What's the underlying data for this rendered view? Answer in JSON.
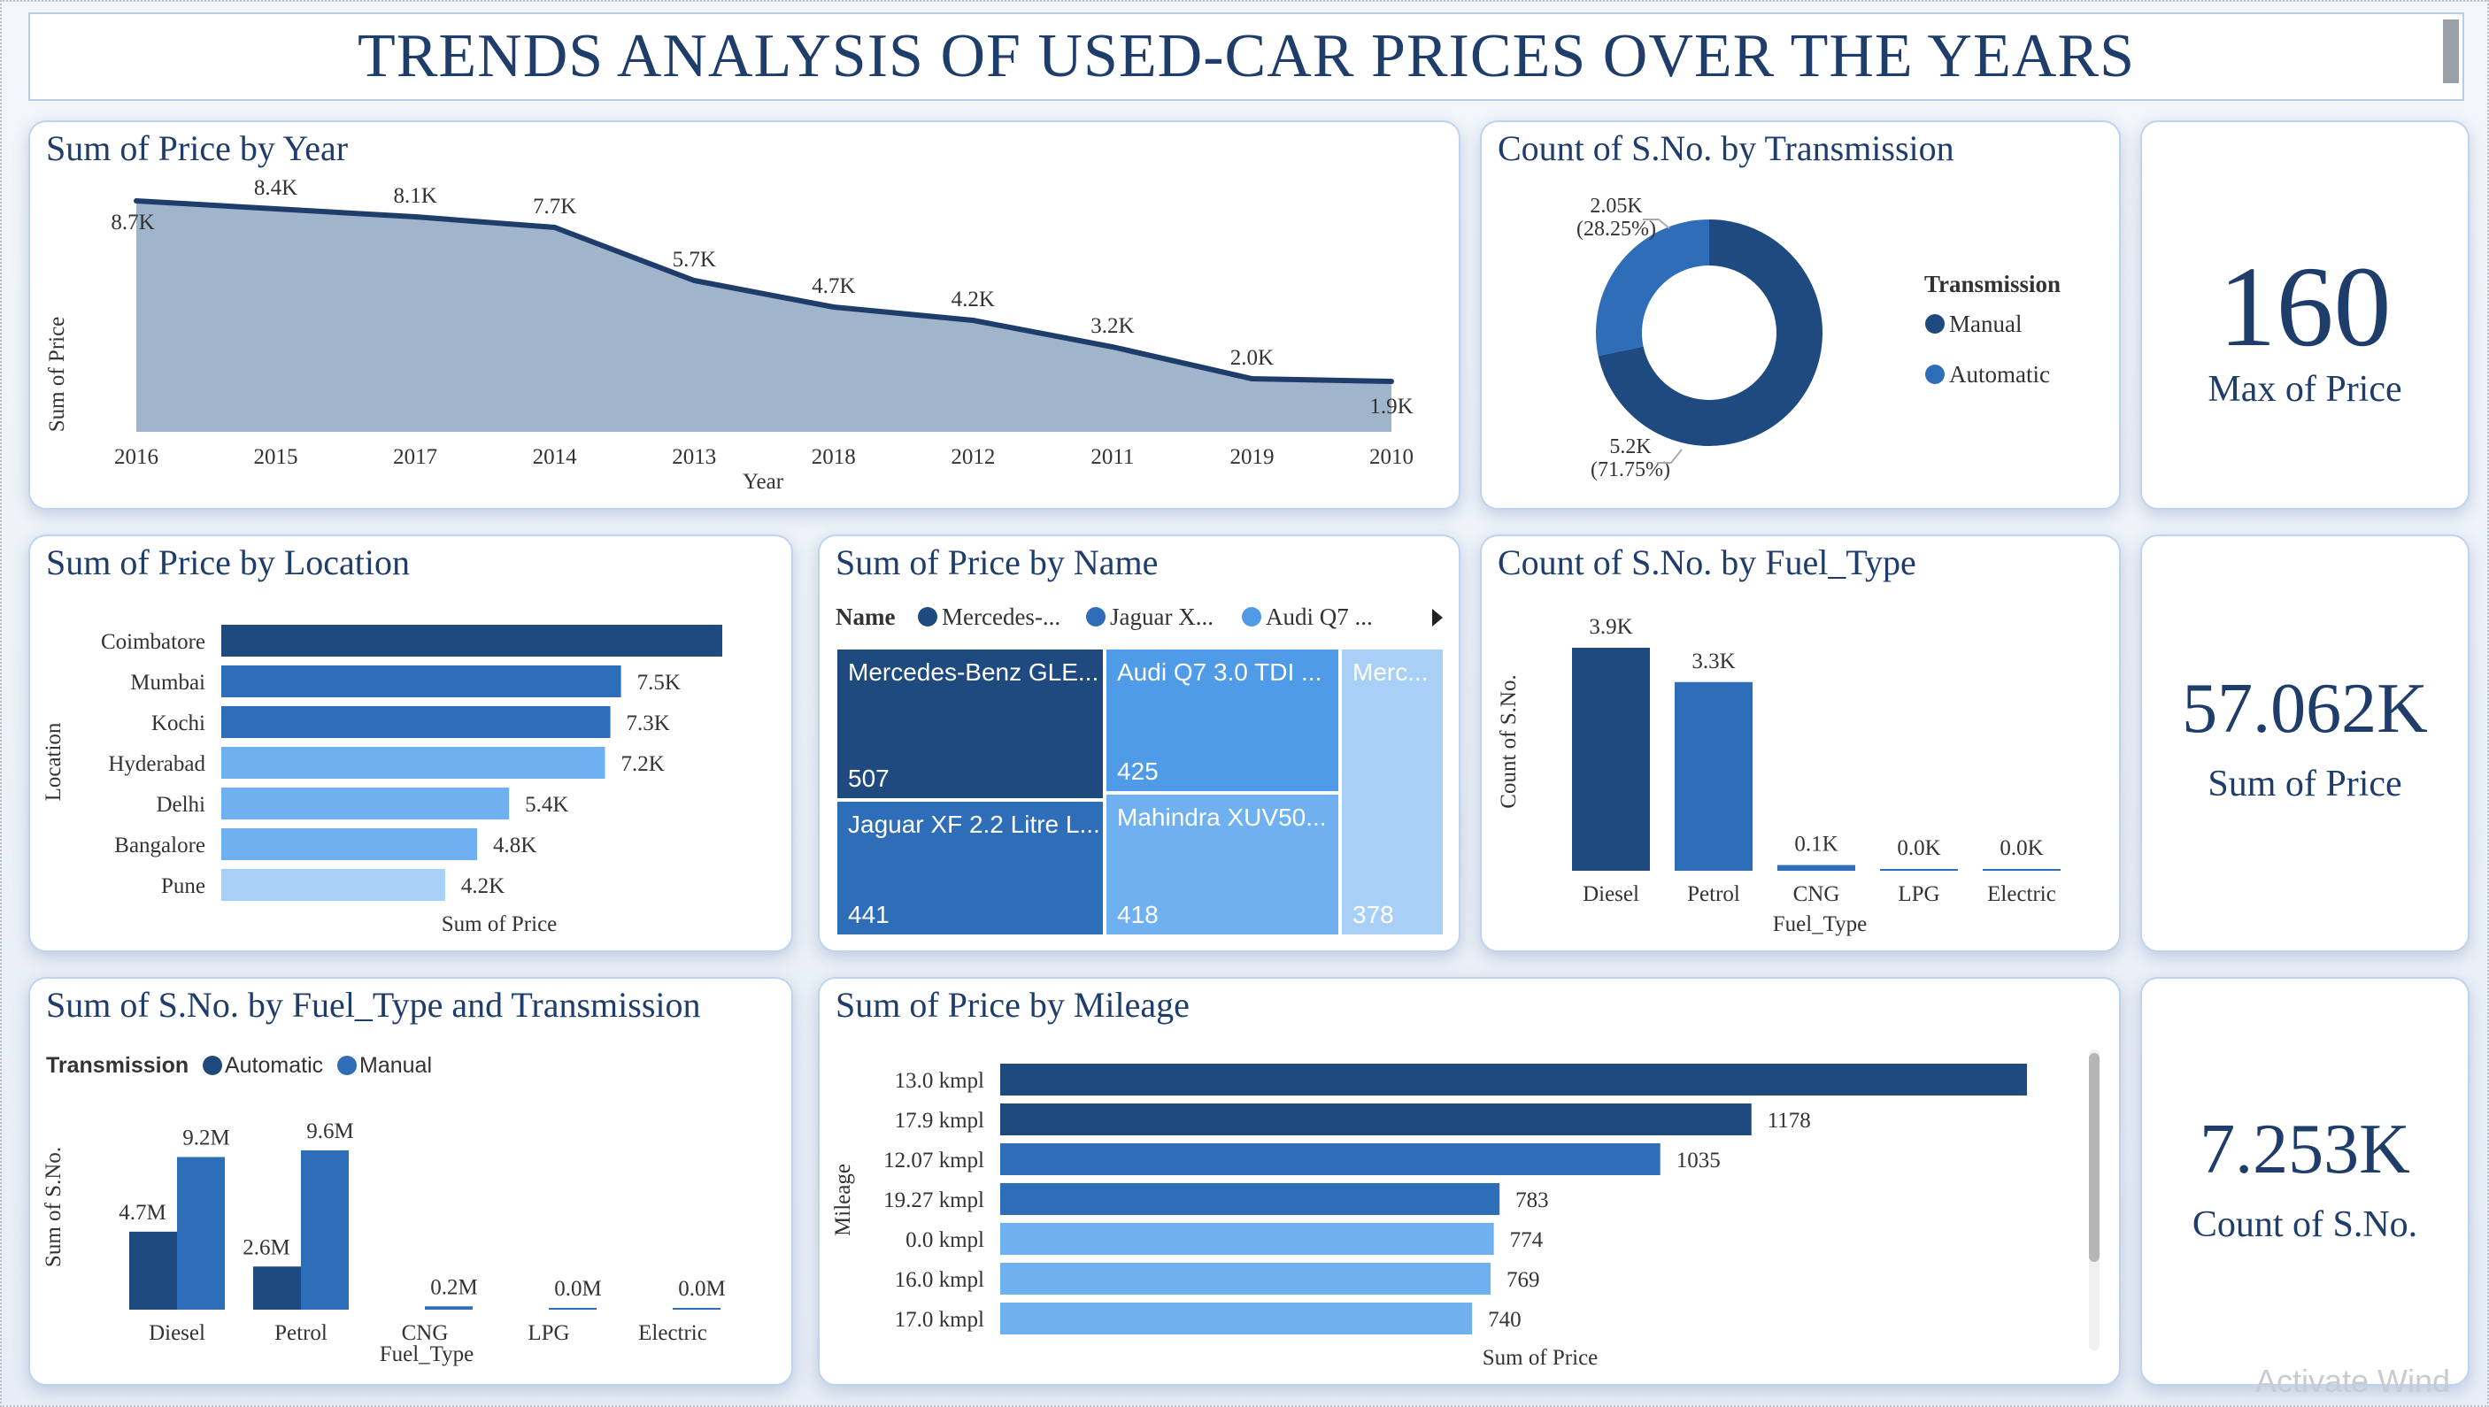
{
  "header": {
    "title": "TRENDS ANALYSIS OF USED-CAR PRICES OVER THE YEARS"
  },
  "colors": {
    "dark": "#1f4a7f",
    "mid": "#2e6db8",
    "light": "#4f9be8",
    "lighter": "#6fb0f0",
    "lightest": "#a8cff5",
    "area": "#a0b4cb"
  },
  "kpis": {
    "max_price": {
      "value": "160",
      "label": "Max of Price"
    },
    "sum_price": {
      "value": "57.062K",
      "label": "Sum of Price"
    },
    "count_sno": {
      "value": "7.253K",
      "label": "Count of S.No."
    }
  },
  "chart_data": [
    {
      "id": "price_by_year",
      "type": "area",
      "title": "Sum of Price by Year",
      "xlabel": "Year",
      "ylabel": "Sum of Price",
      "categories": [
        "2016",
        "2015",
        "2017",
        "2014",
        "2013",
        "2018",
        "2012",
        "2011",
        "2019",
        "2010"
      ],
      "values": [
        8700,
        8400,
        8100,
        7700,
        5700,
        4700,
        4200,
        3200,
        2000,
        1900
      ],
      "labels": [
        "8.7K",
        "8.4K",
        "8.1K",
        "7.7K",
        "5.7K",
        "4.7K",
        "4.2K",
        "3.2K",
        "2.0K",
        "1.9K"
      ]
    },
    {
      "id": "count_by_transmission",
      "type": "pie",
      "title": "Count of S.No. by Transmission",
      "legend_title": "Transmission",
      "slices": [
        {
          "name": "Manual",
          "value": 5200,
          "label": "5.2K",
          "pct": "(71.75%)",
          "color": "#1f4a7f"
        },
        {
          "name": "Automatic",
          "value": 2050,
          "label": "2.05K",
          "pct": "(28.25%)",
          "color": "#2e6db8"
        }
      ]
    },
    {
      "id": "price_by_location",
      "type": "bar",
      "title": "Sum of Price by Location",
      "xlabel": "Sum of Price",
      "ylabel": "Location",
      "categories": [
        "Coimbatore",
        "Mumbai",
        "Kochi",
        "Hyderabad",
        "Delhi",
        "Bangalore",
        "Pune"
      ],
      "values": [
        9400,
        7500,
        7300,
        7200,
        5400,
        4800,
        4200
      ],
      "labels": [
        "",
        "7.5K",
        "7.3K",
        "7.2K",
        "5.4K",
        "4.8K",
        "4.2K"
      ]
    },
    {
      "id": "price_by_name",
      "type": "treemap",
      "title": "Sum of Price by Name",
      "legend_title": "Name",
      "legend": [
        "Mercedes-...",
        "Jaguar X...",
        "Audi Q7 ..."
      ],
      "tiles": [
        {
          "name": "Mercedes-Benz GLE...",
          "value": 507
        },
        {
          "name": "Jaguar XF 2.2 Litre L...",
          "value": 441
        },
        {
          "name": "Audi Q7 3.0 TDI ...",
          "value": 425
        },
        {
          "name": "Mahindra XUV50...",
          "value": 418
        },
        {
          "name": "Merc...",
          "value": 378
        }
      ]
    },
    {
      "id": "count_by_fuel",
      "type": "bar",
      "title": "Count of S.No. by Fuel_Type",
      "xlabel": "Fuel_Type",
      "ylabel": "Count of S.No.",
      "categories": [
        "Diesel",
        "Petrol",
        "CNG",
        "LPG",
        "Electric"
      ],
      "values": [
        3900,
        3300,
        100,
        0,
        0
      ],
      "labels": [
        "3.9K",
        "3.3K",
        "0.1K",
        "0.0K",
        "0.0K"
      ]
    },
    {
      "id": "sno_by_fuel_trans",
      "type": "bar",
      "title": "Sum of S.No. by Fuel_Type and Transmission",
      "xlabel": "Fuel_Type",
      "ylabel": "Sum of S.No.",
      "legend_title": "Transmission",
      "categories": [
        "Diesel",
        "Petrol",
        "CNG",
        "LPG",
        "Electric"
      ],
      "series": [
        {
          "name": "Automatic",
          "values": [
            4.7,
            2.6,
            0,
            0,
            0
          ],
          "labels": [
            "4.7M",
            "2.6M",
            "",
            "",
            ""
          ]
        },
        {
          "name": "Manual",
          "values": [
            9.2,
            9.6,
            0.2,
            0.0,
            0.0
          ],
          "labels": [
            "9.2M",
            "9.6M",
            "0.2M",
            "0.0M",
            "0.0M"
          ]
        }
      ]
    },
    {
      "id": "price_by_mileage",
      "type": "bar",
      "title": "Sum of Price by Mileage",
      "xlabel": "Sum of Price",
      "ylabel": "Mileage",
      "categories": [
        "13.0 kmpl",
        "17.9 kmpl",
        "12.07 kmpl",
        "19.27 kmpl",
        "0.0 kmpl",
        "16.0 kmpl",
        "17.0 kmpl"
      ],
      "values": [
        1610,
        1178,
        1035,
        783,
        774,
        769,
        740
      ],
      "labels": [
        "",
        "1178",
        "1035",
        "783",
        "774",
        "769",
        "740"
      ]
    }
  ],
  "watermark": "Activate Wind"
}
